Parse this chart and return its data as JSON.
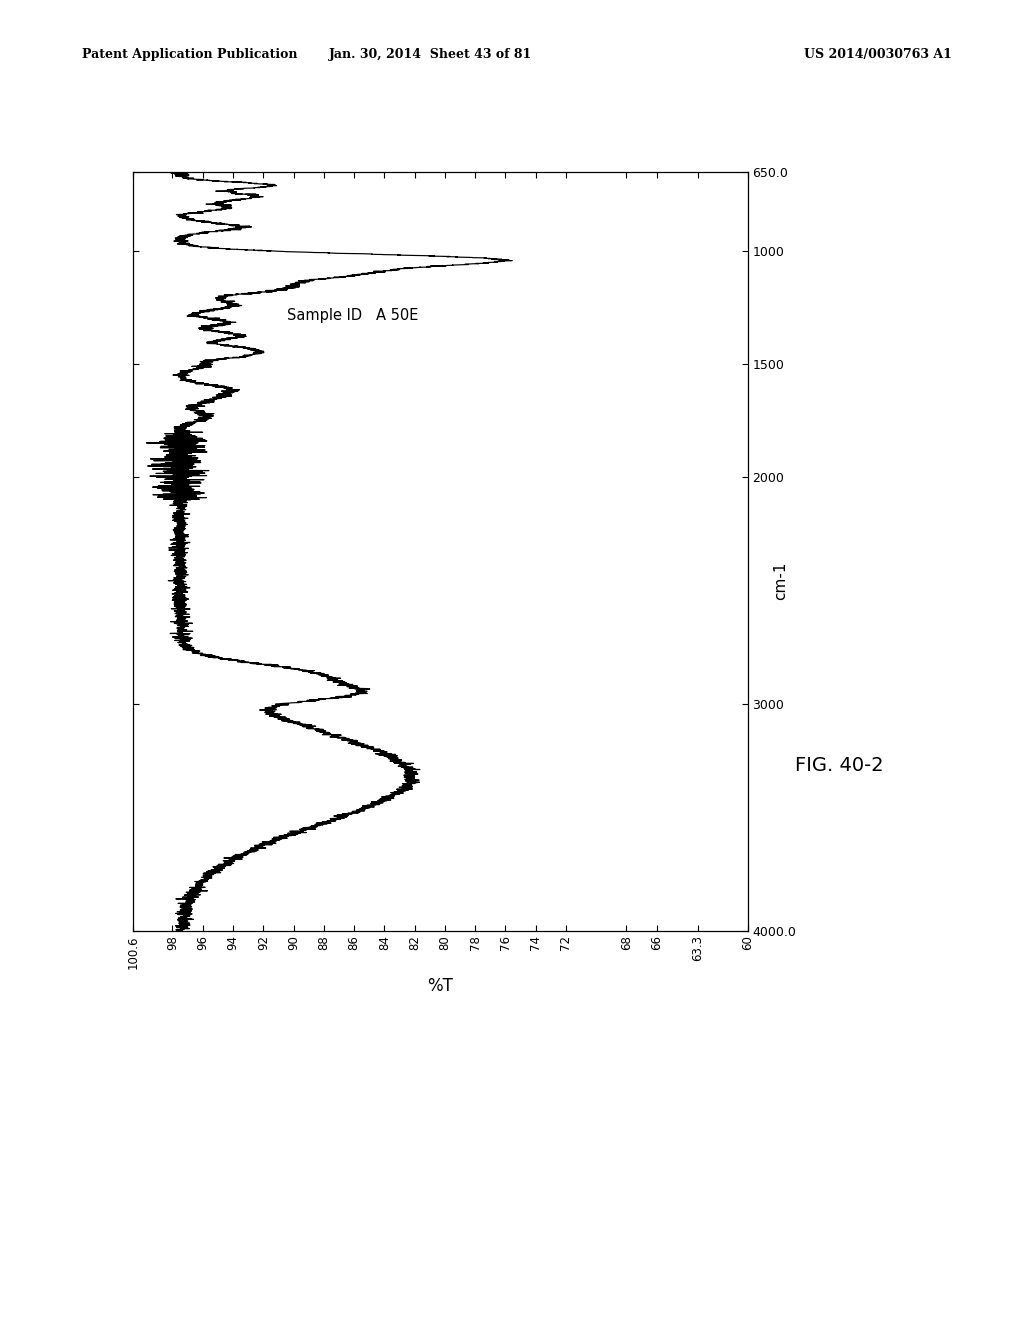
{
  "title": "FIG. 40-2",
  "sample_id_label": "Sample ID   A 50E",
  "cm_label": "cm-1",
  "pct_label": "%T",
  "wn_ylim": [
    4000.0,
    650.0
  ],
  "pct_xlim": [
    100.6,
    63.3
  ],
  "wn_ticks": [
    4000,
    3000,
    2000,
    1500,
    1000,
    650
  ],
  "wn_tick_labels": [
    "4000.0",
    "3000",
    "2000",
    "1500",
    "1000",
    "650.0"
  ],
  "pct_ticks": [
    100.6,
    98,
    96,
    94,
    92,
    90,
    88,
    86,
    84,
    82,
    80,
    78,
    76,
    74,
    72,
    60,
    68,
    66,
    63.3
  ],
  "pct_tick_labels": [
    "100.6",
    "98",
    "96",
    "94",
    "92",
    "90",
    "88",
    "86",
    "84",
    "82",
    "80",
    "78",
    "76",
    "74",
    "72",
    "60",
    "68",
    "66",
    "63.3"
  ],
  "line_color": "#000000",
  "bg_color": "#ffffff",
  "header": "Patent Application Publication     Jan. 30, 2014  Sheet 43 of 81      US 2014/0030763 A1",
  "header_left": "Patent Application Publication",
  "header_mid": "Jan. 30, 2014  Sheet 43 of 81",
  "header_right": "US 2014/0030763 A1"
}
